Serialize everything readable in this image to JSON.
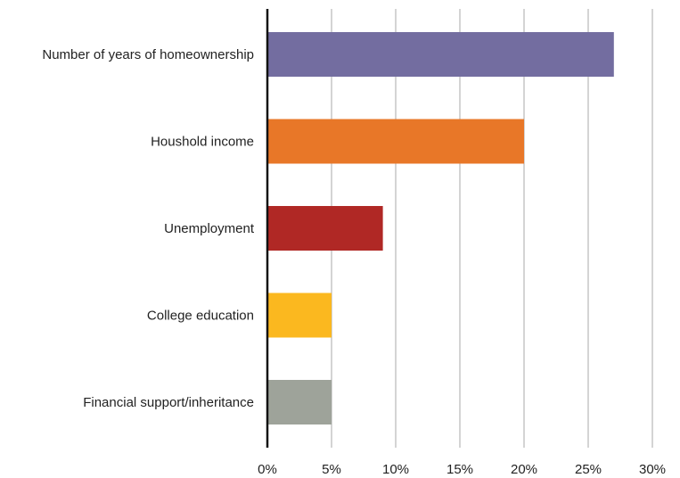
{
  "chart_data": {
    "type": "bar",
    "orientation": "horizontal",
    "categories": [
      "Number of years of homeownership",
      "Houshold income",
      "Unemployment",
      "College education",
      "Financial support/inheritance"
    ],
    "values": [
      27,
      20,
      9,
      5,
      5
    ],
    "colors": [
      "#736da0",
      "#e87728",
      "#b02825",
      "#fbb81f",
      "#9ea39a"
    ],
    "xlim": [
      0,
      30
    ],
    "xticks": [
      0,
      5,
      10,
      15,
      20,
      25,
      30
    ],
    "tick_labels": [
      "0%",
      "5%",
      "10%",
      "15%",
      "20%",
      "25%",
      "30%"
    ],
    "grid": true,
    "legend": "none"
  }
}
